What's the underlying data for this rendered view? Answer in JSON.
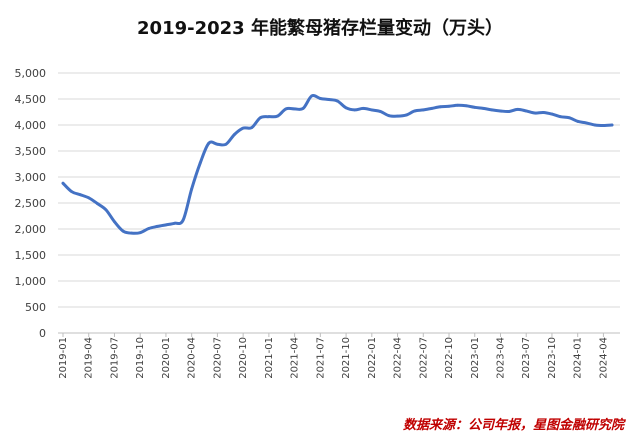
{
  "chart_data": {
    "type": "line",
    "title": "2019-2023 年能繁母猪存栏量变动（万头）",
    "source": "数据来源：公司年报，星图金融研究院",
    "ylim": [
      0,
      5000
    ],
    "yticks": [
      "0",
      "500",
      "1,000",
      "1,500",
      "2,000",
      "2,500",
      "3,000",
      "3,500",
      "4,000",
      "4,500",
      "5,000"
    ],
    "grid": true,
    "legend": "none",
    "line_color": "#4472c4",
    "x_tick_labels": [
      "2019-01",
      "2019-04",
      "2019-07",
      "2019-10",
      "2020-01",
      "2020-04",
      "2020-07",
      "2020-10",
      "2021-01",
      "2021-04",
      "2021-07",
      "2021-10",
      "2022-01",
      "2022-04",
      "2022-07",
      "2022-10",
      "2023-01",
      "2023-04",
      "2023-07",
      "2023-10",
      "2024-01",
      "2024-04"
    ],
    "x": [
      "2019-01",
      "2019-02",
      "2019-03",
      "2019-04",
      "2019-05",
      "2019-06",
      "2019-07",
      "2019-08",
      "2019-09",
      "2019-10",
      "2019-11",
      "2019-12",
      "2020-01",
      "2020-02",
      "2020-03",
      "2020-04",
      "2020-05",
      "2020-06",
      "2020-07",
      "2020-08",
      "2020-09",
      "2020-10",
      "2020-11",
      "2020-12",
      "2021-01",
      "2021-02",
      "2021-03",
      "2021-04",
      "2021-05",
      "2021-06",
      "2021-07",
      "2021-08",
      "2021-09",
      "2021-10",
      "2021-11",
      "2021-12",
      "2022-01",
      "2022-02",
      "2022-03",
      "2022-04",
      "2022-05",
      "2022-06",
      "2022-07",
      "2022-08",
      "2022-09",
      "2022-10",
      "2022-11",
      "2022-12",
      "2023-01",
      "2023-02",
      "2023-03",
      "2023-04",
      "2023-05",
      "2023-06",
      "2023-07",
      "2023-08",
      "2023-09",
      "2023-10",
      "2023-11",
      "2023-12",
      "2024-01",
      "2024-02",
      "2024-03",
      "2024-04",
      "2024-05"
    ],
    "values": [
      2880,
      2720,
      2660,
      2600,
      2490,
      2370,
      2140,
      1960,
      1920,
      1930,
      2010,
      2050,
      2080,
      2110,
      2170,
      2770,
      3270,
      3650,
      3630,
      3630,
      3820,
      3940,
      3950,
      4140,
      4160,
      4170,
      4310,
      4310,
      4320,
      4560,
      4510,
      4490,
      4460,
      4330,
      4290,
      4320,
      4290,
      4260,
      4180,
      4170,
      4190,
      4270,
      4290,
      4320,
      4350,
      4360,
      4380,
      4370,
      4340,
      4320,
      4290,
      4270,
      4260,
      4300,
      4270,
      4230,
      4240,
      4210,
      4160,
      4140,
      4070,
      4040,
      4000,
      3990,
      4000
    ]
  }
}
